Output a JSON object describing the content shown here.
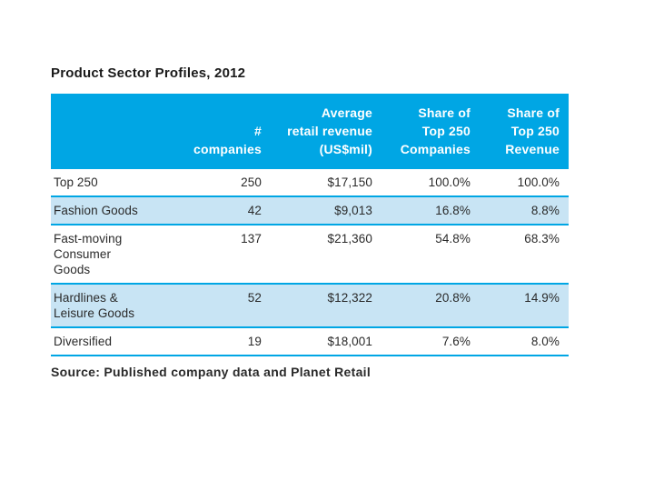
{
  "slide": {
    "title": "Product Sector Profiles, 2012",
    "source": "Source: Published company data and Planet Retail"
  },
  "colors": {
    "canvas": "#ffffff",
    "header_bg": "#00a6e4",
    "header_text": "#ffffff",
    "alt_row_bg": "#c8e4f4",
    "rule": "#00a6e4",
    "text": "#2a2a2a"
  },
  "table": {
    "header_cells": [
      {
        "lines": [
          ""
        ]
      },
      {
        "lines": [
          "#",
          "companies"
        ]
      },
      {
        "lines": [
          "Average",
          "retail revenue",
          "(US$mil)"
        ]
      },
      {
        "lines": [
          "Share of",
          "Top 250",
          "Companies"
        ]
      },
      {
        "lines": [
          "Share of",
          "Top 250",
          "Revenue"
        ]
      }
    ],
    "rows": [
      {
        "label_lines": [
          "Top 250"
        ],
        "values": [
          "250",
          "$17,150",
          "100.0%",
          "100.0%"
        ],
        "shaded": false
      },
      {
        "label_lines": [
          "Fashion Goods"
        ],
        "values": [
          "42",
          "$9,013",
          "16.8%",
          "8.8%"
        ],
        "shaded": true
      },
      {
        "label_lines": [
          "Fast-moving",
          "Consumer",
          "Goods"
        ],
        "values": [
          "137",
          "$21,360",
          "54.8%",
          "68.3%"
        ],
        "shaded": false
      },
      {
        "label_lines": [
          "Hardlines &",
          "Leisure Goods"
        ],
        "values": [
          "52",
          "$12,322",
          "20.8%",
          "14.9%"
        ],
        "shaded": true
      },
      {
        "label_lines": [
          "Diversified"
        ],
        "values": [
          "19",
          "$18,001",
          "7.6%",
          "8.0%"
        ],
        "shaded": false
      }
    ]
  },
  "chart_data": {
    "type": "table",
    "title": "Product Sector Profiles, 2012",
    "columns": [
      "",
      "# companies",
      "Average retail revenue (US$mil)",
      "Share of Top 250 Companies",
      "Share of Top 250 Revenue"
    ],
    "rows": [
      [
        "Top 250",
        250,
        "$17,150",
        "100.0%",
        "100.0%"
      ],
      [
        "Fashion Goods",
        42,
        "$9,013",
        "16.8%",
        "8.8%"
      ],
      [
        "Fast-moving Consumer Goods",
        137,
        "$21,360",
        "54.8%",
        "68.3%"
      ],
      [
        "Hardlines & Leisure Goods",
        52,
        "$12,322",
        "20.8%",
        "14.9%"
      ],
      [
        "Diversified",
        19,
        "$18,001",
        "7.6%",
        "8.0%"
      ]
    ],
    "source": "Source: Published company data and Planet Retail"
  }
}
